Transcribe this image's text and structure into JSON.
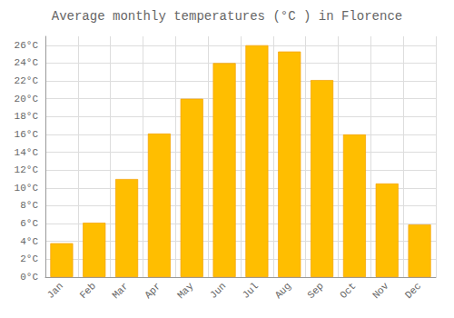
{
  "chart_data": {
    "type": "bar",
    "title": "Average monthly temperatures (°C ) in Florence",
    "categories": [
      "Jan",
      "Feb",
      "Mar",
      "Apr",
      "May",
      "Jun",
      "Jul",
      "Aug",
      "Sep",
      "Oct",
      "Nov",
      "Dec"
    ],
    "values": [
      3.8,
      6.1,
      11.0,
      16.1,
      20.0,
      24.0,
      26.0,
      25.3,
      22.1,
      16.0,
      10.5,
      5.9
    ],
    "color": "#FFBE00",
    "ylim": [
      0,
      27
    ],
    "yticks": [
      {
        "value": 0,
        "label": "0°C"
      },
      {
        "value": 2,
        "label": "2°C"
      },
      {
        "value": 4,
        "label": "4°C"
      },
      {
        "value": 6,
        "label": "6°C"
      },
      {
        "value": 8,
        "label": "8°C"
      },
      {
        "value": 10,
        "label": "10°C"
      },
      {
        "value": 12,
        "label": "12°C"
      },
      {
        "value": 14,
        "label": "14°C"
      },
      {
        "value": 16,
        "label": "16°C"
      },
      {
        "value": 18,
        "label": "18°C"
      },
      {
        "value": 20,
        "label": "20°C"
      },
      {
        "value": 22,
        "label": "22°C"
      },
      {
        "value": 24,
        "label": "24°C"
      },
      {
        "value": 26,
        "label": "26°C"
      }
    ],
    "grid": true
  }
}
